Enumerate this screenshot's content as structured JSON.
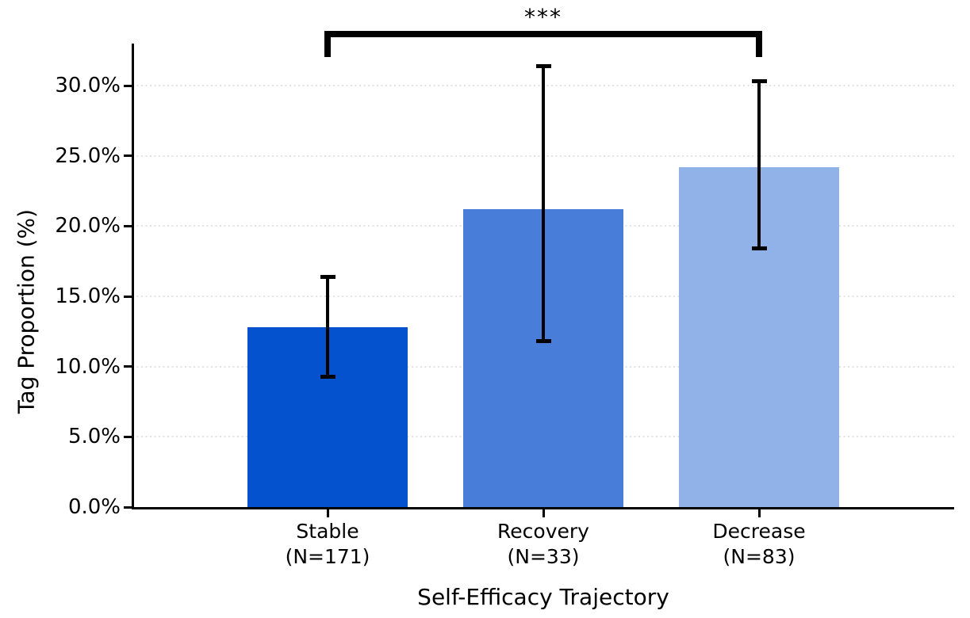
{
  "chart_data": {
    "type": "bar",
    "title": "",
    "xlabel": "Self-Efficacy Trajectory",
    "ylabel": "Tag Proportion (%)",
    "categories": [
      "Stable\n(N=171)",
      "Recovery\n(N=33)",
      "Decrease\n(N=83)"
    ],
    "group_names": [
      "Stable",
      "Recovery",
      "Decrease"
    ],
    "group_sizes": [
      171,
      33,
      83
    ],
    "values_pct": [
      12.8,
      21.2,
      24.2
    ],
    "error_low_pct": [
      9.3,
      11.8,
      18.4
    ],
    "error_high_pct": [
      16.4,
      31.4,
      30.3
    ],
    "bar_colors": [
      "#0452ce",
      "#487ed9",
      "#90b2e8"
    ],
    "error_bar_color": "#000000",
    "ylim": [
      0,
      33
    ],
    "yticks_pct": [
      0,
      5,
      10,
      15,
      20,
      25,
      30
    ],
    "ytick_labels": [
      "0.0%",
      "5.0%",
      "10.0%",
      "15.0%",
      "20.0%",
      "25.0%",
      "30.0%"
    ],
    "grid": {
      "axis": "y",
      "style": "dotted",
      "color": "#e2e2e2"
    },
    "legend": "none",
    "significance": {
      "label": "***",
      "between": [
        "Stable",
        "Decrease"
      ],
      "from_index": 0,
      "to_index": 2
    }
  }
}
